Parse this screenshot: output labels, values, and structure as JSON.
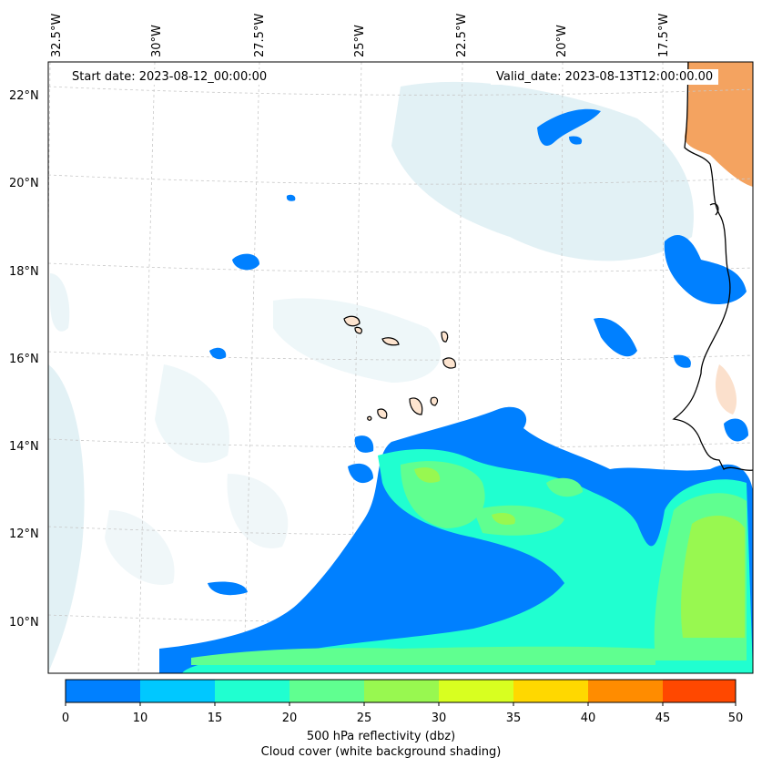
{
  "header": {
    "start_date": "Start date: 2023-08-12_00:00:00",
    "valid_date": "Valid_date: 2023-08-13T12:00:00.00"
  },
  "lon_labels": [
    "32.5°W",
    "30°W",
    "27.5°W",
    "25°W",
    "22.5°W",
    "20°W",
    "17.5°W"
  ],
  "lat_labels": [
    "22°N",
    "20°N",
    "18°N",
    "16°N",
    "14°N",
    "12°N",
    "10°N"
  ],
  "colorbar": {
    "ticks": [
      "0",
      "10",
      "15",
      "20",
      "25",
      "30",
      "35",
      "40",
      "45",
      "50"
    ],
    "colors": [
      "#0080ff",
      "#00c8ff",
      "#20ffd0",
      "#60ff90",
      "#98f850",
      "#d8ff20",
      "#ffd800",
      "#ff8c00",
      "#ff4800"
    ],
    "label": "500 hPa reflectivity (dbz)",
    "sublabel": "Cloud cover (white background shading)"
  },
  "legend_colors": {
    "cloud_shading": "#d8ecf2",
    "land_temperature": "#f4a360",
    "coastline": "#000000"
  }
}
